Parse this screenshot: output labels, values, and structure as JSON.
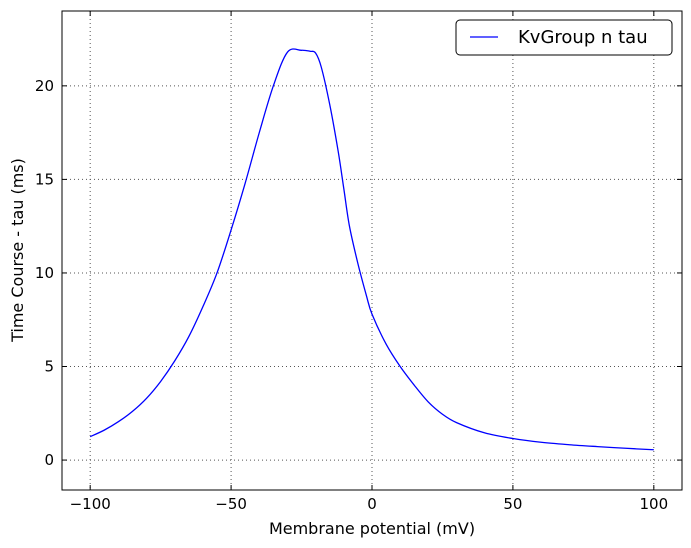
{
  "chart_data": {
    "type": "line",
    "title": "",
    "xlabel": "Membrane potential (mV)",
    "ylabel": "Time Course - tau (ms)",
    "xlim": [
      -110,
      110
    ],
    "ylim": [
      -1.6,
      24.0
    ],
    "xticks": [
      -100,
      -50,
      0,
      50,
      100
    ],
    "yticks": [
      0,
      5,
      10,
      15,
      20
    ],
    "xtick_labels": [
      "−100",
      "−50",
      "0",
      "50",
      "100"
    ],
    "ytick_labels": [
      "0",
      "5",
      "10",
      "15",
      "20"
    ],
    "grid": true,
    "legend_position": "top-right",
    "series": [
      {
        "name": "KvGroup n tau",
        "color": "#0000ff",
        "x": [
          -100,
          -95,
          -90,
          -85,
          -80,
          -75,
          -70,
          -65,
          -60,
          -55,
          -50,
          -45,
          -40,
          -35,
          -30,
          -25,
          -22,
          -20,
          -18,
          -15,
          -12,
          -10,
          -8,
          -5,
          -2,
          0,
          5,
          10,
          15,
          20,
          25,
          30,
          40,
          50,
          60,
          70,
          80,
          90,
          100
        ],
        "y": [
          1.25,
          1.6,
          2.05,
          2.6,
          3.3,
          4.2,
          5.3,
          6.6,
          8.2,
          10.0,
          12.3,
          14.8,
          17.5,
          20.0,
          21.8,
          21.9,
          21.85,
          21.75,
          21.0,
          19.0,
          16.5,
          14.5,
          12.5,
          10.5,
          8.8,
          7.8,
          6.2,
          5.0,
          4.0,
          3.1,
          2.45,
          2.0,
          1.45,
          1.15,
          0.95,
          0.82,
          0.72,
          0.63,
          0.55
        ]
      }
    ]
  }
}
